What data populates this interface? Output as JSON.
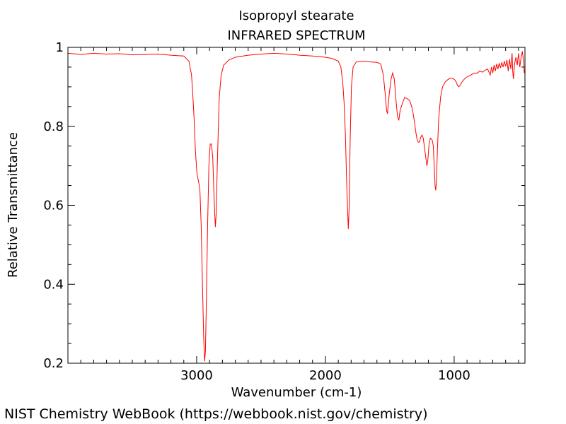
{
  "chart_data": {
    "type": "line",
    "title": "Isopropyl stearate",
    "subtitle": "INFRARED SPECTRUM",
    "xlabel": "Wavenumber (cm-1)",
    "ylabel": "Relative Transmittance",
    "xlim": [
      4000,
      450
    ],
    "ylim": [
      0.2,
      1.0
    ],
    "x_ticks": [
      {
        "value": 3000,
        "label": "3000"
      },
      {
        "value": 2000,
        "label": "2000"
      },
      {
        "value": 1000,
        "label": "1000"
      }
    ],
    "y_ticks": [
      {
        "value": 1.0,
        "label": "1"
      },
      {
        "value": 0.8,
        "label": "0.8"
      },
      {
        "value": 0.6,
        "label": "0.6"
      },
      {
        "value": 0.4,
        "label": "0.4"
      },
      {
        "value": 0.2,
        "label": "0.2"
      }
    ],
    "grid": false,
    "series": [
      {
        "color": "#ff0000",
        "points": [
          [
            4000,
            0.985
          ],
          [
            3900,
            0.982
          ],
          [
            3800,
            0.985
          ],
          [
            3700,
            0.983
          ],
          [
            3600,
            0.984
          ],
          [
            3500,
            0.981
          ],
          [
            3400,
            0.982
          ],
          [
            3300,
            0.983
          ],
          [
            3200,
            0.98
          ],
          [
            3100,
            0.978
          ],
          [
            3060,
            0.965
          ],
          [
            3040,
            0.93
          ],
          [
            3030,
            0.88
          ],
          [
            3020,
            0.82
          ],
          [
            3010,
            0.74
          ],
          [
            3000,
            0.69
          ],
          [
            2995,
            0.675
          ],
          [
            2985,
            0.66
          ],
          [
            2975,
            0.64
          ],
          [
            2965,
            0.55
          ],
          [
            2955,
            0.4
          ],
          [
            2945,
            0.26
          ],
          [
            2938,
            0.205
          ],
          [
            2932,
            0.23
          ],
          [
            2925,
            0.35
          ],
          [
            2915,
            0.55
          ],
          [
            2905,
            0.7
          ],
          [
            2895,
            0.755
          ],
          [
            2885,
            0.755
          ],
          [
            2875,
            0.72
          ],
          [
            2865,
            0.62
          ],
          [
            2855,
            0.545
          ],
          [
            2848,
            0.58
          ],
          [
            2840,
            0.7
          ],
          [
            2825,
            0.87
          ],
          [
            2810,
            0.93
          ],
          [
            2790,
            0.955
          ],
          [
            2750,
            0.968
          ],
          [
            2700,
            0.975
          ],
          [
            2600,
            0.98
          ],
          [
            2500,
            0.983
          ],
          [
            2400,
            0.985
          ],
          [
            2300,
            0.983
          ],
          [
            2200,
            0.98
          ],
          [
            2100,
            0.978
          ],
          [
            2000,
            0.975
          ],
          [
            1950,
            0.972
          ],
          [
            1900,
            0.965
          ],
          [
            1880,
            0.95
          ],
          [
            1865,
            0.91
          ],
          [
            1855,
            0.86
          ],
          [
            1845,
            0.78
          ],
          [
            1835,
            0.66
          ],
          [
            1828,
            0.59
          ],
          [
            1822,
            0.54
          ],
          [
            1815,
            0.6
          ],
          [
            1808,
            0.76
          ],
          [
            1798,
            0.9
          ],
          [
            1785,
            0.95
          ],
          [
            1760,
            0.963
          ],
          [
            1700,
            0.965
          ],
          [
            1650,
            0.963
          ],
          [
            1600,
            0.962
          ],
          [
            1570,
            0.958
          ],
          [
            1550,
            0.93
          ],
          [
            1535,
            0.88
          ],
          [
            1525,
            0.84
          ],
          [
            1518,
            0.832
          ],
          [
            1505,
            0.88
          ],
          [
            1490,
            0.92
          ],
          [
            1478,
            0.935
          ],
          [
            1465,
            0.92
          ],
          [
            1450,
            0.86
          ],
          [
            1440,
            0.825
          ],
          [
            1430,
            0.815
          ],
          [
            1420,
            0.84
          ],
          [
            1400,
            0.86
          ],
          [
            1385,
            0.873
          ],
          [
            1365,
            0.87
          ],
          [
            1345,
            0.865
          ],
          [
            1330,
            0.85
          ],
          [
            1320,
            0.835
          ],
          [
            1310,
            0.815
          ],
          [
            1300,
            0.79
          ],
          [
            1290,
            0.77
          ],
          [
            1280,
            0.76
          ],
          [
            1270,
            0.76
          ],
          [
            1260,
            0.772
          ],
          [
            1250,
            0.778
          ],
          [
            1240,
            0.77
          ],
          [
            1230,
            0.745
          ],
          [
            1220,
            0.72
          ],
          [
            1212,
            0.7
          ],
          [
            1205,
            0.712
          ],
          [
            1195,
            0.755
          ],
          [
            1185,
            0.77
          ],
          [
            1170,
            0.765
          ],
          [
            1162,
            0.75
          ],
          [
            1155,
            0.7
          ],
          [
            1148,
            0.648
          ],
          [
            1143,
            0.638
          ],
          [
            1138,
            0.66
          ],
          [
            1130,
            0.74
          ],
          [
            1120,
            0.82
          ],
          [
            1105,
            0.875
          ],
          [
            1090,
            0.9
          ],
          [
            1070,
            0.912
          ],
          [
            1050,
            0.918
          ],
          [
            1030,
            0.922
          ],
          [
            1010,
            0.922
          ],
          [
            990,
            0.916
          ],
          [
            975,
            0.905
          ],
          [
            965,
            0.9
          ],
          [
            955,
            0.903
          ],
          [
            940,
            0.912
          ],
          [
            920,
            0.92
          ],
          [
            900,
            0.925
          ],
          [
            880,
            0.928
          ],
          [
            860,
            0.932
          ],
          [
            840,
            0.935
          ],
          [
            820,
            0.935
          ],
          [
            800,
            0.94
          ],
          [
            780,
            0.937
          ],
          [
            760,
            0.942
          ],
          [
            740,
            0.945
          ],
          [
            720,
            0.93
          ],
          [
            710,
            0.95
          ],
          [
            700,
            0.935
          ],
          [
            690,
            0.955
          ],
          [
            680,
            0.94
          ],
          [
            670,
            0.958
          ],
          [
            660,
            0.945
          ],
          [
            650,
            0.96
          ],
          [
            640,
            0.948
          ],
          [
            630,
            0.962
          ],
          [
            620,
            0.95
          ],
          [
            610,
            0.965
          ],
          [
            600,
            0.952
          ],
          [
            590,
            0.968
          ],
          [
            580,
            0.94
          ],
          [
            570,
            0.97
          ],
          [
            560,
            0.945
          ],
          [
            550,
            0.985
          ],
          [
            545,
            0.94
          ],
          [
            540,
            0.92
          ],
          [
            530,
            0.96
          ],
          [
            520,
            0.975
          ],
          [
            510,
            0.955
          ],
          [
            500,
            0.985
          ],
          [
            490,
            0.95
          ],
          [
            480,
            0.975
          ],
          [
            470,
            0.99
          ],
          [
            460,
            0.96
          ],
          [
            455,
            0.935
          ],
          [
            450,
            0.945
          ]
        ]
      }
    ]
  },
  "footer": {
    "credit": "NIST Chemistry WebBook (https://webbook.nist.gov/chemistry)"
  }
}
